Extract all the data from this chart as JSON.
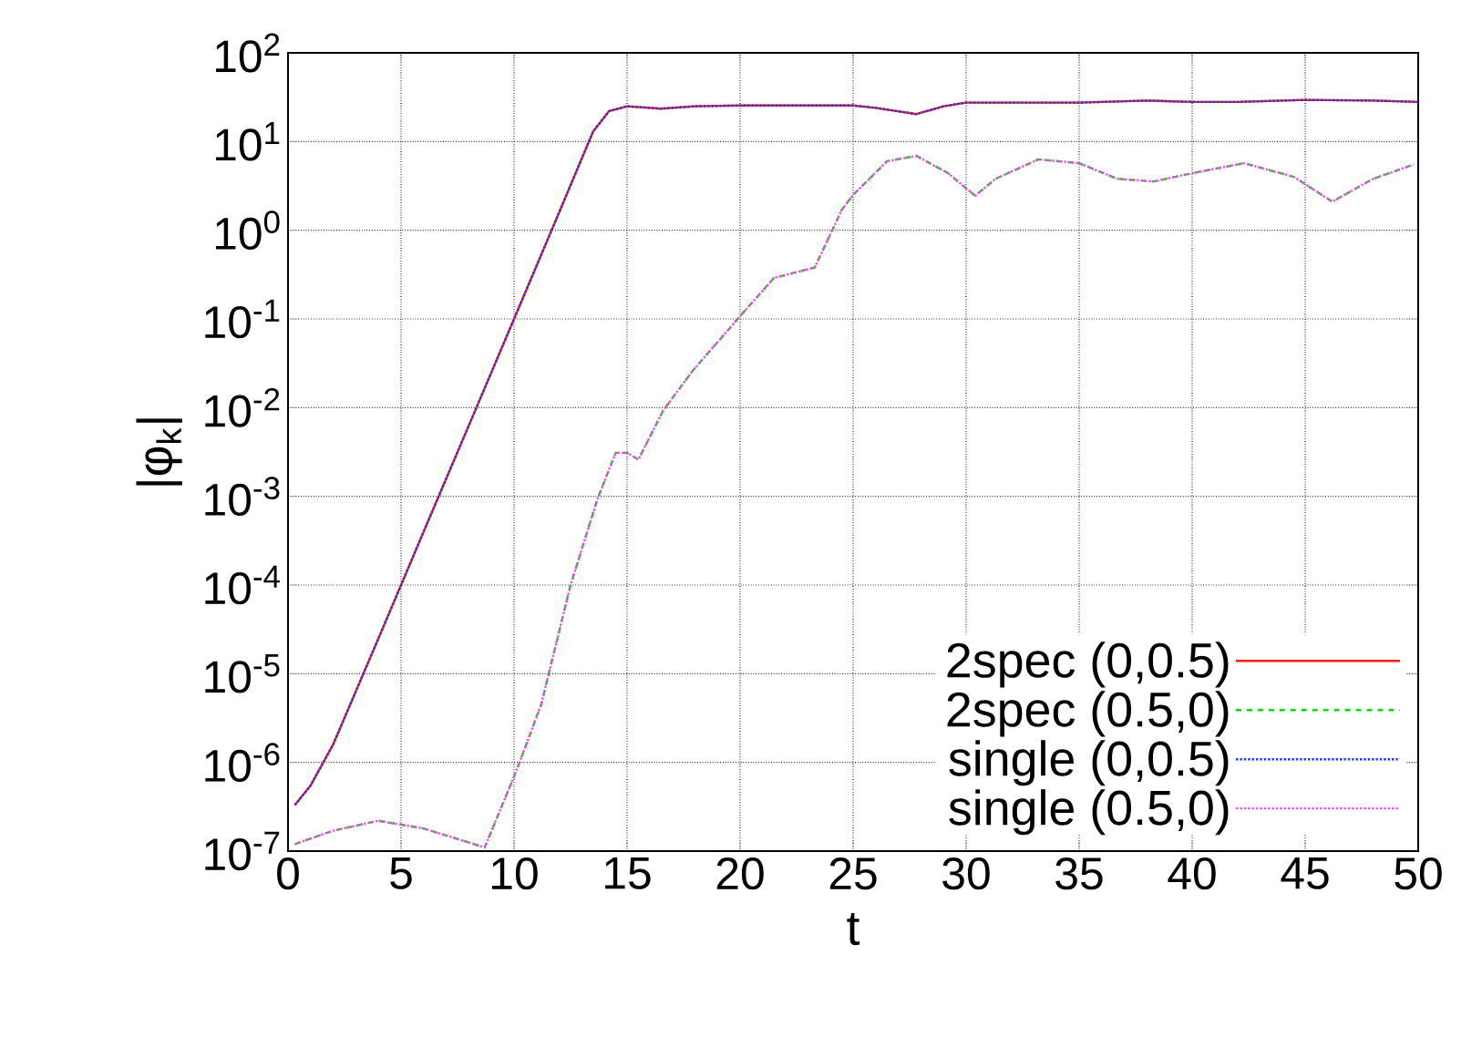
{
  "chart_data": {
    "type": "line",
    "xlabel": "t",
    "ylabel": "|φ$_{k}$|",
    "xlim": [
      0,
      50
    ],
    "ylim": [
      1e-07,
      100
    ],
    "log": "y",
    "grid": true,
    "legend": "bottom right",
    "xticks": [
      0,
      5,
      10,
      15,
      20,
      25,
      30,
      35,
      40,
      45,
      50
    ],
    "yticks": [
      {
        "value": 1e-07,
        "label": "10$^{-7}$"
      },
      {
        "value": 1e-06,
        "label": "10$^{-6}$"
      },
      {
        "value": 1e-05,
        "label": "10$^{-5}$"
      },
      {
        "value": 0.0001,
        "label": "10$^{-4}$"
      },
      {
        "value": 0.001,
        "label": "10$^{-3}$"
      },
      {
        "value": 0.01,
        "label": "10$^{-2}$"
      },
      {
        "value": 0.1,
        "label": "10$^{-1}$"
      },
      {
        "value": 1,
        "label": "10$^{0}$"
      },
      {
        "value": 10,
        "label": "10$^{1}$"
      },
      {
        "value": 100,
        "label": "10$^{2}$"
      }
    ],
    "series": [
      {
        "name": "2spec (0,0.5)",
        "color": "#ff2000",
        "line_style": "solid",
        "x": [
          0.3,
          1,
          2,
          4,
          6,
          8,
          10,
          12,
          13.5,
          14.2,
          15,
          16.5,
          18,
          20,
          22,
          24,
          25,
          26,
          27.8,
          29,
          30,
          32,
          35,
          38,
          40,
          42,
          45,
          48,
          50
        ],
        "values": [
          3.3e-07,
          5.5e-07,
          1.6e-06,
          2.5e-05,
          0.0004,
          0.0063,
          0.1,
          1.6,
          13,
          22,
          25,
          23.5,
          25,
          25.5,
          25.5,
          25.5,
          25.5,
          24,
          20.4,
          25,
          27.5,
          27.5,
          27.5,
          29,
          28,
          28,
          29.5,
          29,
          28
        ]
      },
      {
        "name": "2spec (0.5,0)",
        "color": "#00e000",
        "line_style": "dashed",
        "x": [
          0.3,
          2,
          4,
          6,
          8.7,
          10.1,
          11.2,
          12.5,
          13.7,
          14.5,
          15,
          15.5,
          16.6,
          17.9,
          20.1,
          21.5,
          23.3,
          24.5,
          25,
          26.5,
          27.8,
          29.2,
          30.4,
          31.3,
          33.2,
          35,
          36.7,
          38.3,
          40,
          42.3,
          44.5,
          46.2,
          48,
          49.8
        ],
        "values": [
          1.2e-07,
          1.7e-07,
          2.2e-07,
          1.8e-07,
          1.1e-07,
          8e-07,
          4.5e-06,
          0.0001,
          0.00095,
          0.0031,
          0.0031,
          0.0026,
          0.0093,
          0.026,
          0.115,
          0.29,
          0.38,
          1.7,
          2.5,
          6,
          6.9,
          4.4,
          2.45,
          3.8,
          6.3,
          5.7,
          3.8,
          3.55,
          4.4,
          5.7,
          4,
          2.1,
          3.8,
          5.5
        ]
      },
      {
        "name": "single (0,0.5)",
        "color": "#2030ff",
        "line_style": "dotted",
        "x": [
          0.3,
          1,
          2,
          4,
          6,
          8,
          10,
          12,
          13.5,
          14.2,
          15,
          16.5,
          18,
          20,
          22,
          24,
          25,
          26,
          27.8,
          29,
          30,
          32,
          35,
          38,
          40,
          42,
          45,
          48,
          50
        ],
        "values": [
          3.3e-07,
          5.5e-07,
          1.6e-06,
          2.5e-05,
          0.0004,
          0.0063,
          0.1,
          1.6,
          13,
          22,
          25,
          23.5,
          25,
          25.5,
          25.5,
          25.5,
          25.5,
          24,
          20.4,
          25,
          27.5,
          27.5,
          27.5,
          29,
          28,
          28,
          29.5,
          29,
          28
        ]
      },
      {
        "name": "single (0.5,0)",
        "color": "#ff40ff",
        "line_style": "dotted",
        "x": [
          0.3,
          2,
          4,
          6,
          8.7,
          10.1,
          11.2,
          12.5,
          13.7,
          14.5,
          15,
          15.5,
          16.6,
          17.9,
          20.1,
          21.5,
          23.3,
          24.5,
          25,
          26.5,
          27.8,
          29.2,
          30.4,
          31.3,
          33.2,
          35,
          36.7,
          38.3,
          40,
          42.3,
          44.5,
          46.2,
          48,
          49.8
        ],
        "values": [
          1.2e-07,
          1.7e-07,
          2.2e-07,
          1.8e-07,
          1.1e-07,
          8e-07,
          4.5e-06,
          0.0001,
          0.00095,
          0.0031,
          0.0031,
          0.0026,
          0.0093,
          0.026,
          0.115,
          0.29,
          0.38,
          1.7,
          2.5,
          6,
          6.9,
          4.4,
          2.45,
          3.8,
          6.3,
          5.7,
          3.8,
          3.55,
          4.4,
          5.7,
          4,
          2.1,
          3.8,
          5.5
        ]
      }
    ]
  }
}
